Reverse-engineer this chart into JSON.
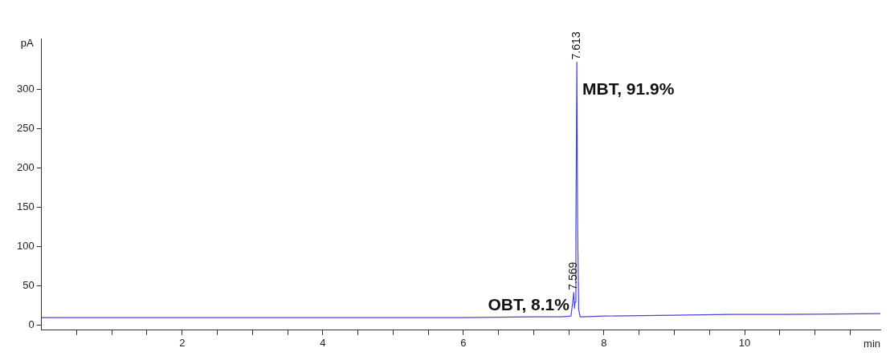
{
  "chart_data": {
    "type": "line",
    "xlabel": "min",
    "ylabel": "pA",
    "x": [
      0,
      1,
      2,
      3,
      4,
      5,
      6,
      7,
      7.4,
      7.53,
      7.555,
      7.569,
      7.58,
      7.59,
      7.6,
      7.613,
      7.625,
      7.64,
      7.66,
      7.7,
      8,
      9,
      9.8,
      10.5,
      11.93
    ],
    "series": [
      {
        "color": "#4646d8",
        "values": [
          10,
          10,
          10,
          10,
          10,
          10,
          10,
          11,
          11,
          12,
          30,
          42,
          22,
          30,
          120,
          335,
          120,
          20,
          11,
          11,
          12,
          13,
          14,
          14,
          15
        ]
      }
    ],
    "xlim": [
      0,
      11.93
    ],
    "ylim": [
      -6,
      365
    ],
    "xticks": [
      {
        "value": 0.5,
        "label": null
      },
      {
        "value": 1,
        "label": null
      },
      {
        "value": 1.5,
        "label": null
      },
      2,
      {
        "value": 2.5,
        "label": null
      },
      {
        "value": 3,
        "label": null
      },
      {
        "value": 3.5,
        "label": null
      },
      4,
      {
        "value": 4.5,
        "label": null
      },
      {
        "value": 5,
        "label": null
      },
      {
        "value": 5.5,
        "label": null
      },
      6,
      {
        "value": 6.5,
        "label": null
      },
      {
        "value": 7,
        "label": null
      },
      {
        "value": 7.5,
        "label": null
      },
      8,
      {
        "value": 8.5,
        "label": null
      },
      {
        "value": 9,
        "label": null
      },
      {
        "value": 9.5,
        "label": null
      },
      10,
      {
        "value": 10.5,
        "label": null
      },
      {
        "value": 11,
        "label": null
      },
      {
        "value": 11.5,
        "label": null
      }
    ],
    "yticks": [
      0,
      50,
      100,
      150,
      200,
      250,
      300
    ],
    "annotations": [
      {
        "text": "7.613",
        "x": 7.61,
        "y": 335
      },
      {
        "text": "7.569",
        "x": 7.57,
        "y": 42
      },
      {
        "text": "MBT, 91.9%",
        "x": 7.6,
        "y": 300
      },
      {
        "text": "OBT, 8.1%",
        "x": 7.6,
        "y": 10
      }
    ],
    "grid": false,
    "legend": false,
    "marker": "none",
    "line_style": "solid"
  }
}
